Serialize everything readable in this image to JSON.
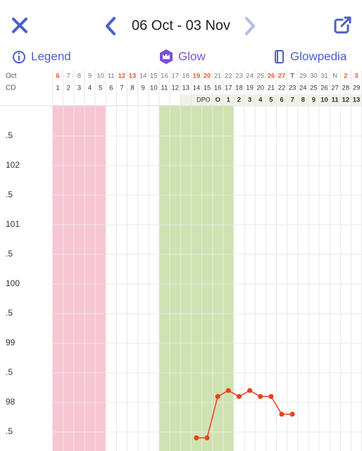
{
  "header": {
    "title": "06 Oct - 03 Nov"
  },
  "toolbar": {
    "legend": "Legend",
    "glow": "Glow",
    "glowpedia": "Glowpedia"
  },
  "chart_data": {
    "type": "line",
    "month_label": "Oct",
    "cd_label": "CD",
    "dpo_label": "DPO",
    "dates": [
      "6",
      "7",
      "8",
      "9",
      "10",
      "11",
      "12",
      "13",
      "14",
      "15",
      "16",
      "17",
      "18",
      "19",
      "20",
      "21",
      "22",
      "23",
      "24",
      "25",
      "26",
      "27",
      "T",
      "29",
      "30",
      "31",
      "N",
      "2",
      "3"
    ],
    "date_colors": [
      "#e8573a",
      "#777",
      "#777",
      "#777",
      "#777",
      "#777",
      "#e8573a",
      "#e8573a",
      "#777",
      "#777",
      "#777",
      "#777",
      "#777",
      "#e8573a",
      "#e8573a",
      "#777",
      "#777",
      "#777",
      "#777",
      "#777",
      "#e8573a",
      "#e8573a",
      "#4b5fc9",
      "#777",
      "#777",
      "#777",
      "#777",
      "#e8573a",
      "#e8573a"
    ],
    "categories": [
      1,
      2,
      3,
      4,
      5,
      6,
      7,
      8,
      9,
      10,
      11,
      12,
      13,
      14,
      15,
      16,
      17,
      18,
      19,
      20,
      21,
      22,
      23,
      24,
      25,
      26,
      27,
      28,
      29
    ],
    "dpo": [
      null,
      null,
      null,
      null,
      null,
      null,
      null,
      null,
      null,
      null,
      null,
      null,
      null,
      null,
      null,
      "O",
      1,
      2,
      3,
      4,
      5,
      6,
      7,
      8,
      9,
      10,
      11,
      12,
      13
    ],
    "shaded": [
      {
        "cd_from": 1,
        "cd_to": 5,
        "color": "#f8c5d3"
      },
      {
        "cd_from": 11,
        "cd_to": 17,
        "color": "#cfe2b1"
      }
    ],
    "series": [
      {
        "color": "#e8401c",
        "values": [
          null,
          null,
          null,
          null,
          null,
          null,
          null,
          null,
          null,
          null,
          null,
          null,
          null,
          97.4,
          97.4,
          98.1,
          98.2,
          98.1,
          98.2,
          98.1,
          98.1,
          97.8,
          97.8,
          null,
          null,
          null,
          null,
          null,
          null
        ]
      }
    ],
    "ylim": [
      97.2,
      103
    ],
    "yticks": [
      {
        "value": 97.5,
        "label": ".5"
      },
      98,
      {
        "value": 98.5,
        "label": ".5"
      },
      99,
      {
        "value": 99.5,
        "label": ".5"
      },
      100,
      {
        "value": 100.5,
        "label": ".5"
      },
      101,
      {
        "value": 101.5,
        "label": ".5"
      },
      102,
      {
        "value": 102.5,
        "label": ".5"
      }
    ],
    "grid": true
  }
}
